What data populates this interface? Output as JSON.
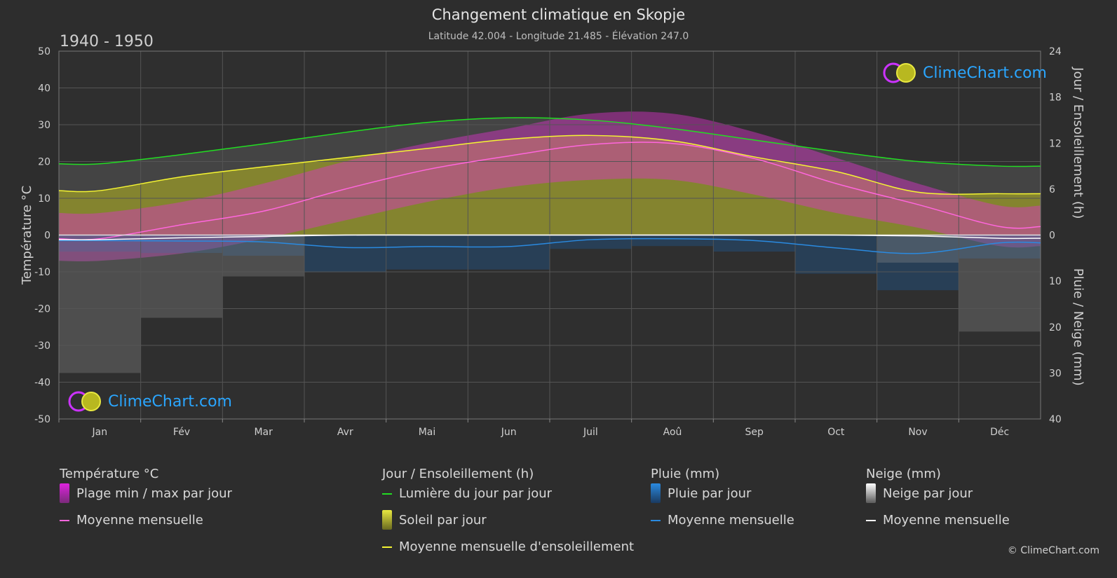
{
  "title": "Changement climatique en Skopje",
  "subtitle": "Latitude 42.004 - Longitude 21.485 - Élévation 247.0",
  "period": "1940 - 1950",
  "copyright": "© ClimeChart.com",
  "logo_text": "ClimeChart.com",
  "colors": {
    "background": "#2d2d2d",
    "daylight": "#22dd22",
    "sunshine_mean": "#f5f532",
    "sunshine_fill": "#9a9a28",
    "temp_mean": "#ff66dd",
    "temp_range": "#dd33cc",
    "rain_mean": "#2a8ae0",
    "rain_fill": "#1e5fa0",
    "snow_mean": "#ffffff",
    "snow_fill": "#8a8a8a",
    "logo": "#2aa6ff"
  },
  "legend": {
    "temp": {
      "heading": "Température °C",
      "range": "Plage min / max par jour",
      "mean": "Moyenne mensuelle"
    },
    "sun": {
      "heading": "Jour / Ensoleillement (h)",
      "daylight": "Lumière du jour par jour",
      "sunshine": "Soleil par jour",
      "mean": "Moyenne mensuelle d'ensoleillement"
    },
    "rain": {
      "heading": "Pluie (mm)",
      "daily": "Pluie par jour",
      "mean": "Moyenne mensuelle"
    },
    "snow": {
      "heading": "Neige (mm)",
      "daily": "Neige par jour",
      "mean": "Moyenne mensuelle"
    }
  },
  "chart_data": {
    "type": "area",
    "x_categories": [
      "Jan",
      "Fév",
      "Mar",
      "Avr",
      "Mai",
      "Jun",
      "Juil",
      "Aoû",
      "Sep",
      "Oct",
      "Nov",
      "Déc"
    ],
    "left_axis": {
      "label": "Température °C",
      "ticks": [
        50,
        40,
        30,
        20,
        10,
        0,
        -10,
        -20,
        -30,
        -40,
        -50
      ],
      "range": [
        -50,
        50
      ]
    },
    "right_axis_top": {
      "label": "Jour / Ensoleillement (h)",
      "ticks": [
        24,
        18,
        12,
        6,
        0
      ],
      "range": [
        0,
        24
      ]
    },
    "right_axis_bottom": {
      "label": "Pluie / Neige (mm)",
      "ticks": [
        0,
        10,
        20,
        30,
        40
      ],
      "range": [
        0,
        40
      ]
    },
    "grid": true,
    "series": [
      {
        "name": "Lumière du jour par jour",
        "axis": "hours",
        "values": [
          9.3,
          10.5,
          11.9,
          13.4,
          14.7,
          15.3,
          15.0,
          13.9,
          12.4,
          10.9,
          9.6,
          9.0
        ]
      },
      {
        "name": "Moyenne mensuelle d'ensoleillement",
        "axis": "hours",
        "values": [
          5.8,
          7.6,
          8.9,
          10.1,
          11.3,
          12.5,
          13.0,
          12.3,
          10.2,
          8.3,
          5.6,
          5.4
        ]
      },
      {
        "name": "Moyenne mensuelle",
        "axis": "temperature",
        "values": [
          -1.0,
          2.8,
          6.5,
          12.5,
          17.8,
          21.5,
          24.6,
          24.9,
          20.8,
          14.0,
          8.3,
          2.3
        ]
      },
      {
        "name": "Plage min / max par jour",
        "axis": "temperature",
        "min": [
          -7,
          -5,
          -1,
          4,
          9,
          13,
          15,
          15,
          11,
          6,
          2,
          -3
        ],
        "max": [
          6,
          9,
          14,
          20,
          25,
          29,
          33,
          33,
          28,
          21,
          14,
          8
        ]
      },
      {
        "name": "Pluie moyenne mensuelle",
        "axis": "precip",
        "values": [
          1.2,
          1.3,
          1.5,
          2.7,
          2.5,
          2.5,
          1.0,
          0.8,
          1.2,
          2.8,
          4.0,
          1.7
        ]
      },
      {
        "name": "Neige moyenne mensuelle",
        "axis": "precip",
        "values": [
          1.0,
          0.6,
          0.3,
          0.0,
          0.0,
          0.0,
          0.0,
          0.0,
          0.0,
          0.0,
          0.2,
          0.7
        ]
      }
    ]
  }
}
